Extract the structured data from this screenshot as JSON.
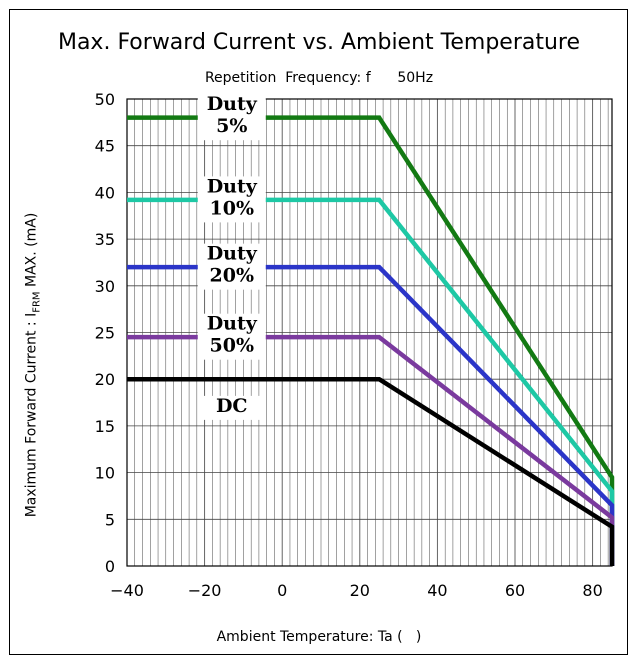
{
  "chart_data": {
    "type": "line",
    "title": "Max. Forward Current vs. Ambient Temperature",
    "subtitle": "Repetition  Frequency: f      50Hz",
    "xlabel": "Ambient Temperature: Ta (   )",
    "ylabel_main": "Maximum Forward Current : I",
    "ylabel_sub": "FRM",
    "ylabel_tail": " MAX. (mA)",
    "xlim": [
      -40,
      85
    ],
    "ylim": [
      0,
      50
    ],
    "xticks": [
      -40,
      -20,
      0,
      20,
      40,
      60,
      80
    ],
    "xtick_labels": [
      "−40",
      "−20",
      "0",
      "20",
      "40",
      "60",
      "80"
    ],
    "yticks": [
      0,
      5,
      10,
      15,
      20,
      25,
      30,
      35,
      40,
      45,
      50
    ],
    "ytick_labels": [
      "0",
      "5",
      "10",
      "15",
      "20",
      "25",
      "30",
      "35",
      "40",
      "45",
      "50"
    ],
    "grid": true,
    "series": [
      {
        "color": "#137a13",
        "points": [
          [
            -40,
            48
          ],
          [
            25,
            48
          ],
          [
            85,
            9.5
          ],
          [
            85,
            0
          ]
        ]
      },
      {
        "color": "#1ec8a5",
        "points": [
          [
            -40,
            39.2
          ],
          [
            25,
            39.2
          ],
          [
            85,
            8
          ],
          [
            85,
            0
          ]
        ]
      },
      {
        "color": "#2b35c8",
        "points": [
          [
            -40,
            32
          ],
          [
            25,
            32
          ],
          [
            85,
            6.5
          ],
          [
            85,
            0
          ]
        ]
      },
      {
        "color": "#7a3a9e",
        "points": [
          [
            -40,
            24.5
          ],
          [
            25,
            24.5
          ],
          [
            85,
            5.2
          ],
          [
            85,
            0
          ]
        ]
      },
      {
        "color": "#000000",
        "points": [
          [
            -40,
            20
          ],
          [
            25,
            20
          ],
          [
            85,
            4.2
          ],
          [
            85,
            0
          ]
        ]
      }
    ],
    "annotations": [
      {
        "lines": [
          "Duty",
          "5%"
        ],
        "x": -13,
        "y": 48,
        "dy": [
          0.8,
          -2.2
        ]
      },
      {
        "lines": [
          "Duty",
          "10%"
        ],
        "x": -13,
        "y": 39.2,
        "dy": [
          0.8,
          -2.2
        ]
      },
      {
        "lines": [
          "Duty",
          "20%"
        ],
        "x": -13,
        "y": 32,
        "dy": [
          0.8,
          -2.2
        ]
      },
      {
        "lines": [
          "Duty",
          "50%"
        ],
        "x": -13,
        "y": 24.5,
        "dy": [
          0.8,
          -2.2
        ]
      },
      {
        "lines": [
          "DC"
        ],
        "x": -13,
        "y": 16.5,
        "dy": [
          0
        ]
      }
    ]
  }
}
